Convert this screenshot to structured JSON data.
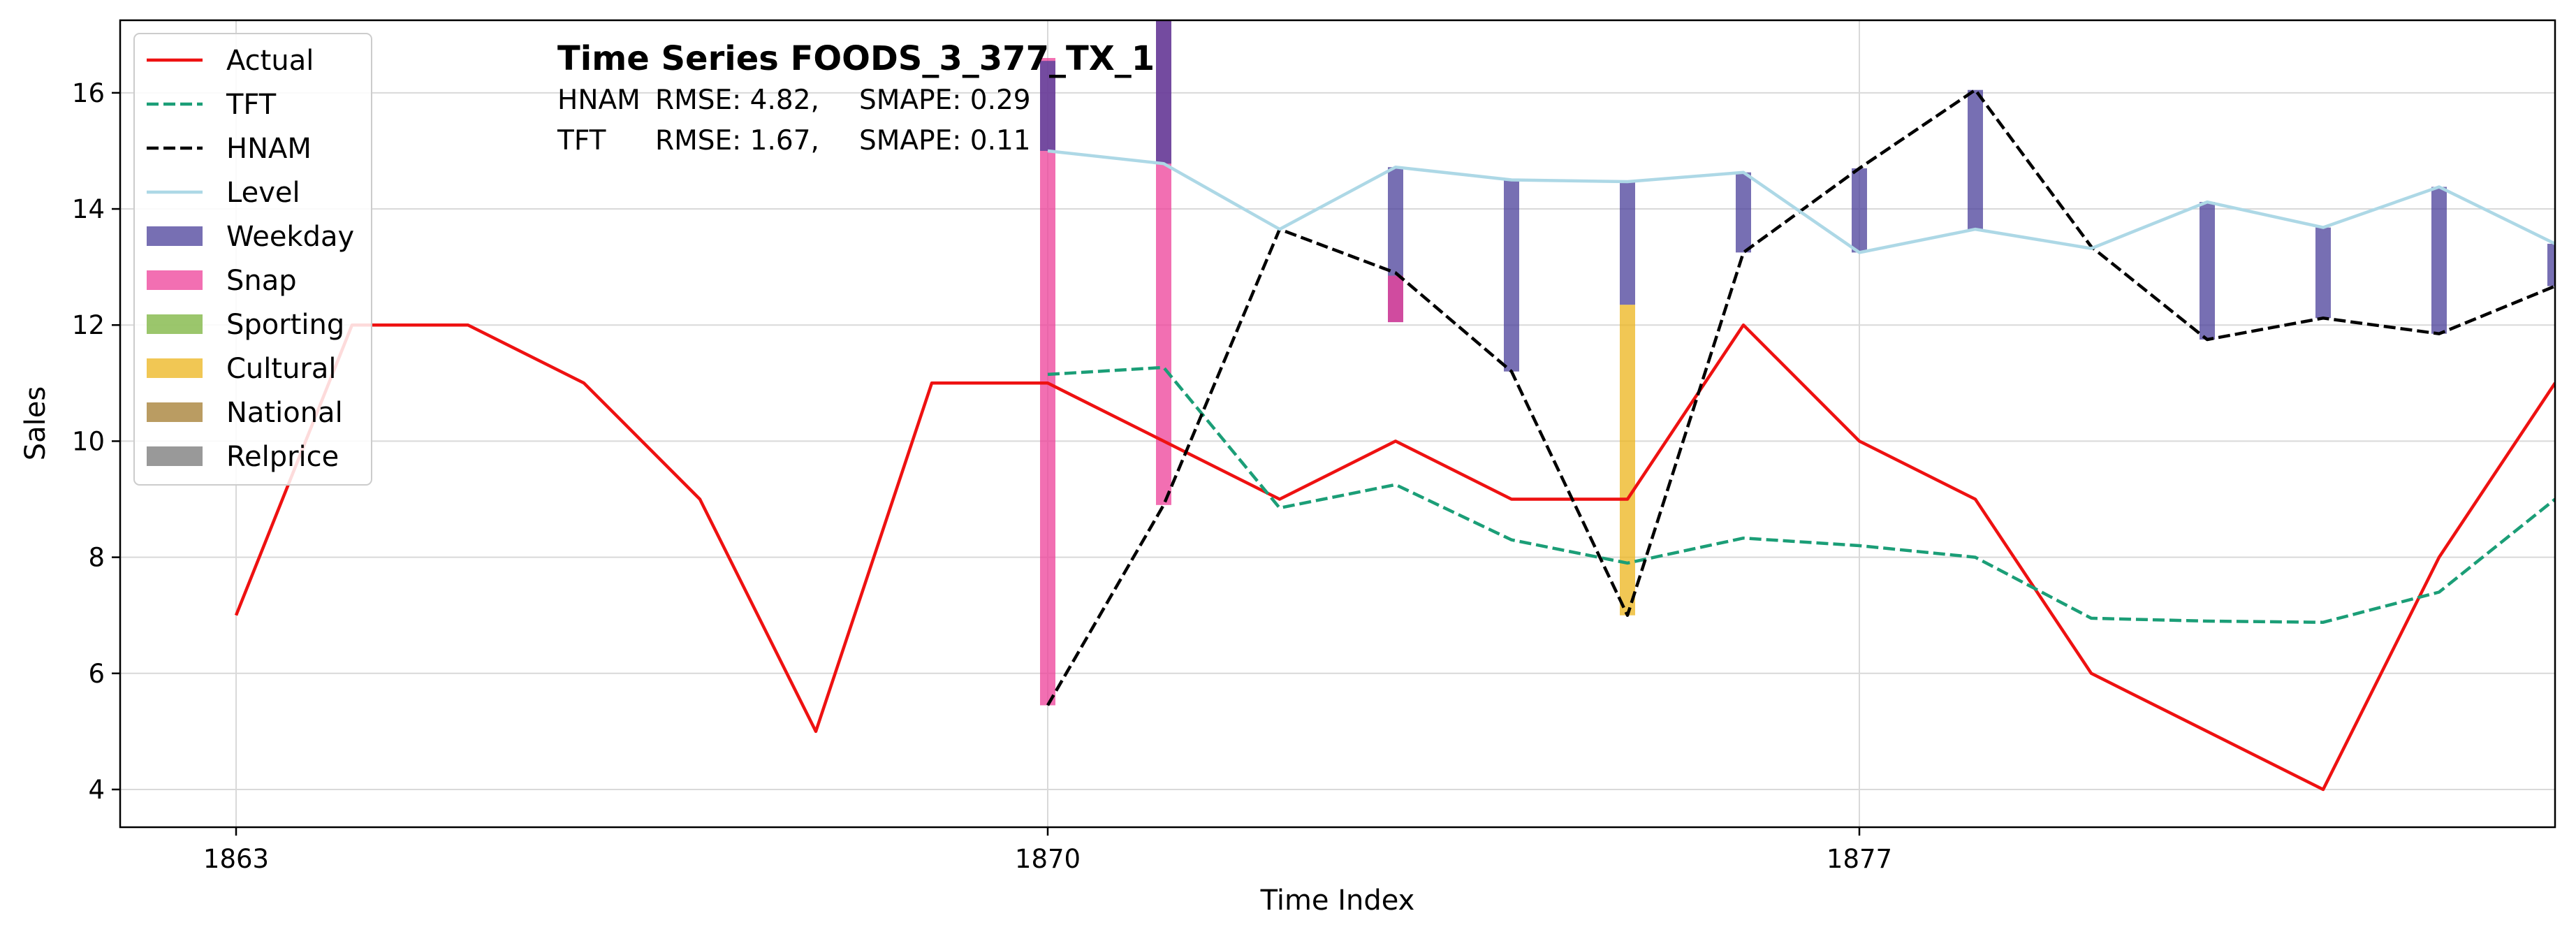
{
  "chart_data": {
    "type": "line",
    "title": "Time Series FOODS_3_377_TX_1",
    "metrics": [
      {
        "model": "HNAM",
        "rmse_label": "RMSE: 4.82,",
        "smape_label": "SMAPE: 0.29"
      },
      {
        "model": "TFT",
        "rmse_label": "RMSE: 1.67,",
        "smape_label": "SMAPE: 0.11"
      }
    ],
    "xlabel": "Time Index",
    "ylabel": "Sales",
    "xlim": [
      1862.0,
      1883.0
    ],
    "ylim": [
      3.35,
      17.25
    ],
    "x_ticks": [
      1863,
      1870,
      1877
    ],
    "y_ticks": [
      4,
      6,
      8,
      10,
      12,
      14,
      16
    ],
    "grid": true,
    "legend_position": "top-left",
    "series": [
      {
        "name": "Actual",
        "style": "solid",
        "color": "#ee1111",
        "points": [
          [
            1863,
            7
          ],
          [
            1864,
            12
          ],
          [
            1865,
            12
          ],
          [
            1866,
            11
          ],
          [
            1867,
            9
          ],
          [
            1868,
            5
          ],
          [
            1869,
            11
          ],
          [
            1870,
            11
          ],
          [
            1871,
            10
          ],
          [
            1872,
            9
          ],
          [
            1873,
            10
          ],
          [
            1874,
            9
          ],
          [
            1875,
            9
          ],
          [
            1876,
            12
          ],
          [
            1877,
            10
          ],
          [
            1878,
            9
          ],
          [
            1879,
            6
          ],
          [
            1880,
            5
          ],
          [
            1881,
            4
          ],
          [
            1882,
            8
          ],
          [
            1883,
            11
          ]
        ]
      },
      {
        "name": "TFT",
        "style": "dashed",
        "color": "#1b9e77",
        "points": [
          [
            1870,
            11.15
          ],
          [
            1871,
            11.27
          ],
          [
            1872,
            8.85
          ],
          [
            1873,
            9.25
          ],
          [
            1874,
            8.3
          ],
          [
            1875,
            7.9
          ],
          [
            1876,
            8.33
          ],
          [
            1877,
            8.2
          ],
          [
            1878,
            8.0
          ],
          [
            1879,
            6.95
          ],
          [
            1880,
            6.9
          ],
          [
            1881,
            6.88
          ],
          [
            1882,
            7.4
          ],
          [
            1883,
            9.0
          ]
        ]
      },
      {
        "name": "HNAM",
        "style": "dashed",
        "color": "#000000",
        "points": [
          [
            1870,
            5.45
          ],
          [
            1871,
            8.9
          ],
          [
            1872,
            13.65
          ],
          [
            1873,
            12.9
          ],
          [
            1874,
            11.2
          ],
          [
            1875,
            7.0
          ],
          [
            1876,
            13.25
          ],
          [
            1877,
            14.7
          ],
          [
            1878,
            16.05
          ],
          [
            1879,
            13.35
          ],
          [
            1880,
            11.75
          ],
          [
            1881,
            12.12
          ],
          [
            1882,
            11.85
          ],
          [
            1883,
            12.67
          ]
        ]
      },
      {
        "name": "Level",
        "style": "solid",
        "color": "#add8e6",
        "points": [
          [
            1870,
            15.0
          ],
          [
            1871,
            14.78
          ],
          [
            1872,
            13.65
          ],
          [
            1873,
            14.72
          ],
          [
            1874,
            14.5
          ],
          [
            1875,
            14.47
          ],
          [
            1876,
            14.63
          ],
          [
            1877,
            13.25
          ],
          [
            1878,
            13.65
          ],
          [
            1879,
            13.32
          ],
          [
            1880,
            14.12
          ],
          [
            1881,
            13.68
          ],
          [
            1882,
            14.38
          ],
          [
            1883,
            13.4
          ]
        ]
      }
    ],
    "components": [
      {
        "name": "Weekday",
        "color": "#4a3f9a"
      },
      {
        "name": "Snap",
        "color": "#ee3f98"
      },
      {
        "name": "Sporting",
        "color": "#7ab33b"
      },
      {
        "name": "Cultural",
        "color": "#ecb41b"
      },
      {
        "name": "National",
        "color": "#a37b2e"
      },
      {
        "name": "Relprice",
        "color": "#777777"
      }
    ],
    "component_bars": [
      {
        "x": 1870,
        "component": "Snap",
        "from": 5.45,
        "to": 16.6
      },
      {
        "x": 1870,
        "component": "Weekday",
        "from": 15.0,
        "to": 16.55
      },
      {
        "x": 1871,
        "component": "Snap",
        "from": 8.9,
        "to": 17.25
      },
      {
        "x": 1871,
        "component": "Weekday",
        "from": 14.78,
        "to": 17.25
      },
      {
        "x": 1873,
        "component": "Weekday",
        "from": 12.05,
        "to": 14.72
      },
      {
        "x": 1873,
        "component": "Snap",
        "from": 12.05,
        "to": 12.85
      },
      {
        "x": 1874,
        "component": "Weekday",
        "from": 11.2,
        "to": 14.5
      },
      {
        "x": 1875,
        "component": "Cultural",
        "from": 7.0,
        "to": 12.35
      },
      {
        "x": 1875,
        "component": "Weekday",
        "from": 12.35,
        "to": 14.47
      },
      {
        "x": 1876,
        "component": "Weekday",
        "from": 13.25,
        "to": 14.63
      },
      {
        "x": 1877,
        "component": "Weekday",
        "from": 13.25,
        "to": 14.7
      },
      {
        "x": 1878,
        "component": "Weekday",
        "from": 13.65,
        "to": 16.05
      },
      {
        "x": 1880,
        "component": "Weekday",
        "from": 11.75,
        "to": 14.12
      },
      {
        "x": 1881,
        "component": "Weekday",
        "from": 12.12,
        "to": 13.68
      },
      {
        "x": 1882,
        "component": "Weekday",
        "from": 11.85,
        "to": 14.38
      },
      {
        "x": 1883,
        "component": "Weekday",
        "from": 12.67,
        "to": 13.4
      }
    ],
    "legend": [
      {
        "label": "Actual",
        "kind": "line",
        "style": "solid",
        "color": "#ee1111"
      },
      {
        "label": "TFT",
        "kind": "line",
        "style": "dashed",
        "color": "#1b9e77"
      },
      {
        "label": "HNAM",
        "kind": "line",
        "style": "dashed",
        "color": "#000000"
      },
      {
        "label": "Level",
        "kind": "line",
        "style": "solid",
        "color": "#add8e6"
      },
      {
        "label": "Weekday",
        "kind": "patch",
        "color": "#4a3f9a"
      },
      {
        "label": "Snap",
        "kind": "patch",
        "color": "#ee3f98"
      },
      {
        "label": "Sporting",
        "kind": "patch",
        "color": "#7ab33b"
      },
      {
        "label": "Cultural",
        "kind": "patch",
        "color": "#ecb41b"
      },
      {
        "label": "National",
        "kind": "patch",
        "color": "#a37b2e"
      },
      {
        "label": "Relprice",
        "kind": "patch",
        "color": "#777777"
      }
    ]
  }
}
